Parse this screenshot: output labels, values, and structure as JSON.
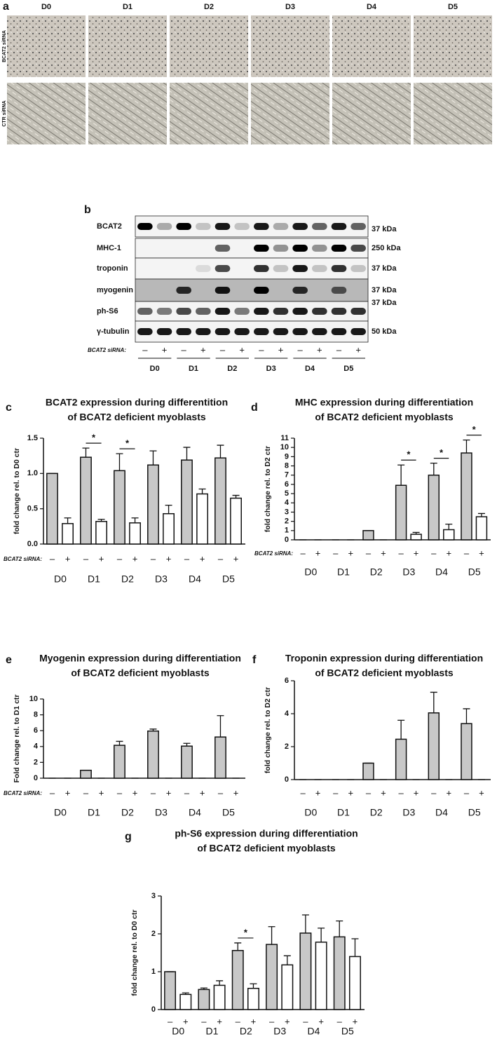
{
  "panel_a": {
    "label": "a",
    "days": [
      "D0",
      "D1",
      "D2",
      "D3",
      "D4",
      "D5"
    ],
    "rows": [
      "BCAT2 siRNA",
      "CTR siRNA"
    ]
  },
  "panel_b": {
    "label": "b",
    "proteins": [
      {
        "name": "BCAT2",
        "size": "37 kDa"
      },
      {
        "name": "MHC-1",
        "size": "250 kDa"
      },
      {
        "name": "troponin",
        "size": "37 kDa"
      },
      {
        "name": "myogenin",
        "size": "37 kDa"
      },
      {
        "name": "ph-S6",
        "size": "37 kDa"
      },
      {
        "name": "γ-tubulin",
        "size": "50 kDa"
      }
    ],
    "row_label": "BCAT2 siRNA:",
    "signs": [
      "–",
      "+"
    ],
    "days": [
      "D0",
      "D1",
      "D2",
      "D3",
      "D4",
      "D5"
    ]
  },
  "chart_data": [
    {
      "type": "bar",
      "panel": "c",
      "title": [
        "BCAT2 expression during differentition",
        "of BCAT2 deficient myoblasts"
      ],
      "ylabel": "fold change rel. to D0 ctr",
      "row_label": "BCAT2 siRNA:",
      "signs": [
        "–",
        "+"
      ],
      "categories": [
        "D0",
        "D1",
        "D2",
        "D3",
        "D4",
        "D5"
      ],
      "series": [
        {
          "color": "#c8c8c8",
          "values": [
            1.0,
            1.23,
            1.04,
            1.12,
            1.19,
            1.22
          ],
          "errors": [
            0,
            0.13,
            0.24,
            0.2,
            0.18,
            0.18
          ]
        },
        {
          "color": "#ffffff",
          "values": [
            0.29,
            0.32,
            0.3,
            0.43,
            0.71,
            0.65
          ],
          "errors": [
            0.08,
            0.03,
            0.07,
            0.12,
            0.07,
            0.04
          ]
        }
      ],
      "ylim": [
        0,
        1.5
      ],
      "yticks": [
        {
          "value": 0,
          "label": "0.0"
        },
        {
          "value": 0.5,
          "label": "0.5"
        },
        {
          "value": 1,
          "label": "1.0"
        },
        {
          "value": 1.5,
          "label": "1.5"
        }
      ],
      "annotations": [
        {
          "text": "*",
          "group": 1
        },
        {
          "text": "*",
          "group": 2
        }
      ]
    },
    {
      "type": "bar",
      "panel": "d",
      "title": [
        "MHC expression during differentiation",
        "of BCAT2 deficient myoblasts"
      ],
      "ylabel": "fold change rel. to D2 ctr",
      "row_label": "BCAT2 siRNA:",
      "signs": [
        "–",
        "+"
      ],
      "categories": [
        "D0",
        "D1",
        "D2",
        "D3",
        "D4",
        "D5"
      ],
      "series": [
        {
          "color": "#c8c8c8",
          "values": [
            0,
            0,
            1,
            5.9,
            7.0,
            9.4
          ],
          "errors": [
            0,
            0,
            0,
            2.2,
            1.3,
            1.4
          ]
        },
        {
          "color": "#ffffff",
          "values": [
            0,
            0,
            0,
            0.6,
            1.1,
            2.5
          ],
          "errors": [
            0,
            0,
            0,
            0.2,
            0.6,
            0.35
          ]
        }
      ],
      "ylim": [
        0,
        11
      ],
      "yticks": [
        0,
        1,
        2,
        3,
        4,
        5,
        6,
        7,
        8,
        9,
        10,
        11
      ],
      "annotations": [
        {
          "text": "*",
          "group": 3
        },
        {
          "text": "*",
          "group": 4
        },
        {
          "text": "*",
          "group": 5
        }
      ]
    },
    {
      "type": "bar",
      "panel": "e",
      "title": [
        "Myogenin expression during differentiation",
        "of BCAT2 deficient myoblasts"
      ],
      "ylabel": "Fold change rel. to D1 ctr",
      "row_label": "BCAT2 siRNA:",
      "signs": [
        "–",
        "+"
      ],
      "categories": [
        "D0",
        "D1",
        "D2",
        "D3",
        "D4",
        "D5"
      ],
      "series": [
        {
          "color": "#c8c8c8",
          "values": [
            0,
            1,
            4.15,
            5.95,
            4.05,
            5.2
          ],
          "errors": [
            0,
            0,
            0.5,
            0.25,
            0.35,
            2.7
          ]
        },
        {
          "color": "#ffffff",
          "values": [
            0,
            0,
            0,
            0,
            0,
            0
          ],
          "errors": [
            0,
            0,
            0,
            0,
            0,
            0
          ]
        }
      ],
      "ylim": [
        0,
        10
      ],
      "yticks": [
        0,
        2,
        4,
        6,
        8,
        10
      ],
      "annotations": []
    },
    {
      "type": "bar",
      "panel": "f",
      "title": [
        "Troponin expression during differentiation",
        "of BCAT2 deficient myoblasts"
      ],
      "ylabel": "fold change rel. to D2 ctr",
      "signs": [
        "–",
        "+"
      ],
      "categories": [
        "D0",
        "D1",
        "D2",
        "D3",
        "D4",
        "D5"
      ],
      "series": [
        {
          "color": "#c8c8c8",
          "values": [
            0,
            0,
            1,
            2.45,
            4.05,
            3.4
          ],
          "errors": [
            0,
            0,
            0,
            1.15,
            1.25,
            0.9
          ]
        },
        {
          "color": "#ffffff",
          "values": [
            0,
            0,
            0,
            0,
            0,
            0
          ],
          "errors": [
            0,
            0,
            0,
            0,
            0,
            0
          ]
        }
      ],
      "ylim": [
        0,
        6
      ],
      "yticks": [
        0,
        2,
        4,
        6
      ],
      "annotations": []
    },
    {
      "type": "bar",
      "panel": "g",
      "title": [
        "ph-S6 expression during differentiation",
        "of BCAT2 deficient myoblasts"
      ],
      "ylabel": "fold change rel. to D0 ctr",
      "signs": [
        "–",
        "+"
      ],
      "categories": [
        "D0",
        "D1",
        "D2",
        "D3",
        "D4",
        "D5"
      ],
      "series": [
        {
          "color": "#c8c8c8",
          "values": [
            1.0,
            0.53,
            1.56,
            1.72,
            2.02,
            1.92
          ],
          "errors": [
            0,
            0.04,
            0.2,
            0.47,
            0.48,
            0.42
          ]
        },
        {
          "color": "#ffffff",
          "values": [
            0.4,
            0.64,
            0.56,
            1.18,
            1.78,
            1.4
          ],
          "errors": [
            0.04,
            0.12,
            0.12,
            0.24,
            0.37,
            0.47
          ]
        }
      ],
      "ylim": [
        0,
        3
      ],
      "yticks": [
        0,
        1,
        2,
        3
      ],
      "annotations": [
        {
          "text": "*",
          "group": 2
        }
      ]
    }
  ]
}
